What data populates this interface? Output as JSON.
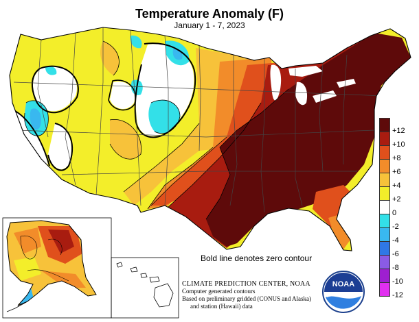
{
  "title": "Temperature Anomaly (F)",
  "subtitle": "January 1 - 7, 2023",
  "zero_contour_note": "Bold line denotes zero contour",
  "credits": {
    "agency": "CLIMATE PREDICTION CENTER, NOAA",
    "line1": "Computer generated contours",
    "line2": "Based on preliminary gridded (CONUS and Alaska)",
    "line3": "and station (Hawaii) data"
  },
  "logo_text": "NOAA",
  "legend": [
    {
      "label": "+12",
      "color": "#5e0a0a"
    },
    {
      "label": "+10",
      "color": "#a81c10"
    },
    {
      "label": "+8",
      "color": "#e0501c"
    },
    {
      "label": "+6",
      "color": "#f28c2a"
    },
    {
      "label": "+4",
      "color": "#f7c23a"
    },
    {
      "label": "+2",
      "color": "#f3ee2a"
    },
    {
      "label": "0",
      "color": "#ffffff"
    },
    {
      "label": "-2",
      "color": "#33e0e8"
    },
    {
      "label": "-4",
      "color": "#39b8ef"
    },
    {
      "label": "-6",
      "color": "#2f78e6"
    },
    {
      "label": "-8",
      "color": "#8a5be5"
    },
    {
      "label": "-10",
      "color": "#9e1fd0"
    },
    {
      "label": "-12",
      "color": "#e12ff0"
    }
  ],
  "colors": {
    "land_outline": "#000000",
    "state_lines": "#444444"
  }
}
